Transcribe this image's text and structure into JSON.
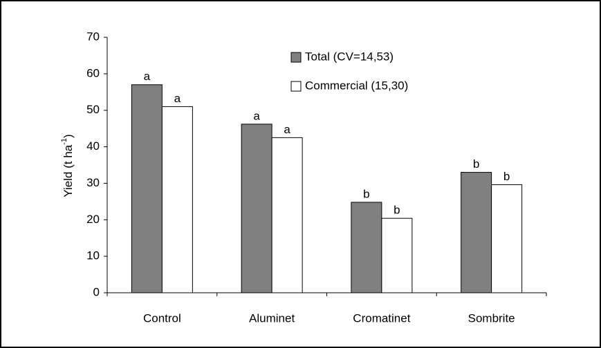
{
  "chart_data": {
    "type": "bar",
    "y_label": {
      "text": "Yield (t ha",
      "sup": "-1",
      "end": ")"
    },
    "categories": [
      "Control",
      "Aluminet",
      "Cromatinet",
      "Sombrite"
    ],
    "series": [
      {
        "name": "Total (CV=14,53)",
        "color": "#808080",
        "values": [
          57,
          46.2,
          24.8,
          33
        ],
        "letters": [
          "a",
          "a",
          "b",
          "b"
        ]
      },
      {
        "name": "Commercial (15,30)",
        "color": "#ffffff",
        "values": [
          51,
          42.5,
          20.4,
          29.6
        ],
        "letters": [
          "a",
          "a",
          "b",
          "b"
        ]
      }
    ],
    "ylim": [
      0,
      70
    ],
    "yticks": [
      0,
      10,
      20,
      30,
      40,
      50,
      60,
      70
    ],
    "grid": false
  }
}
